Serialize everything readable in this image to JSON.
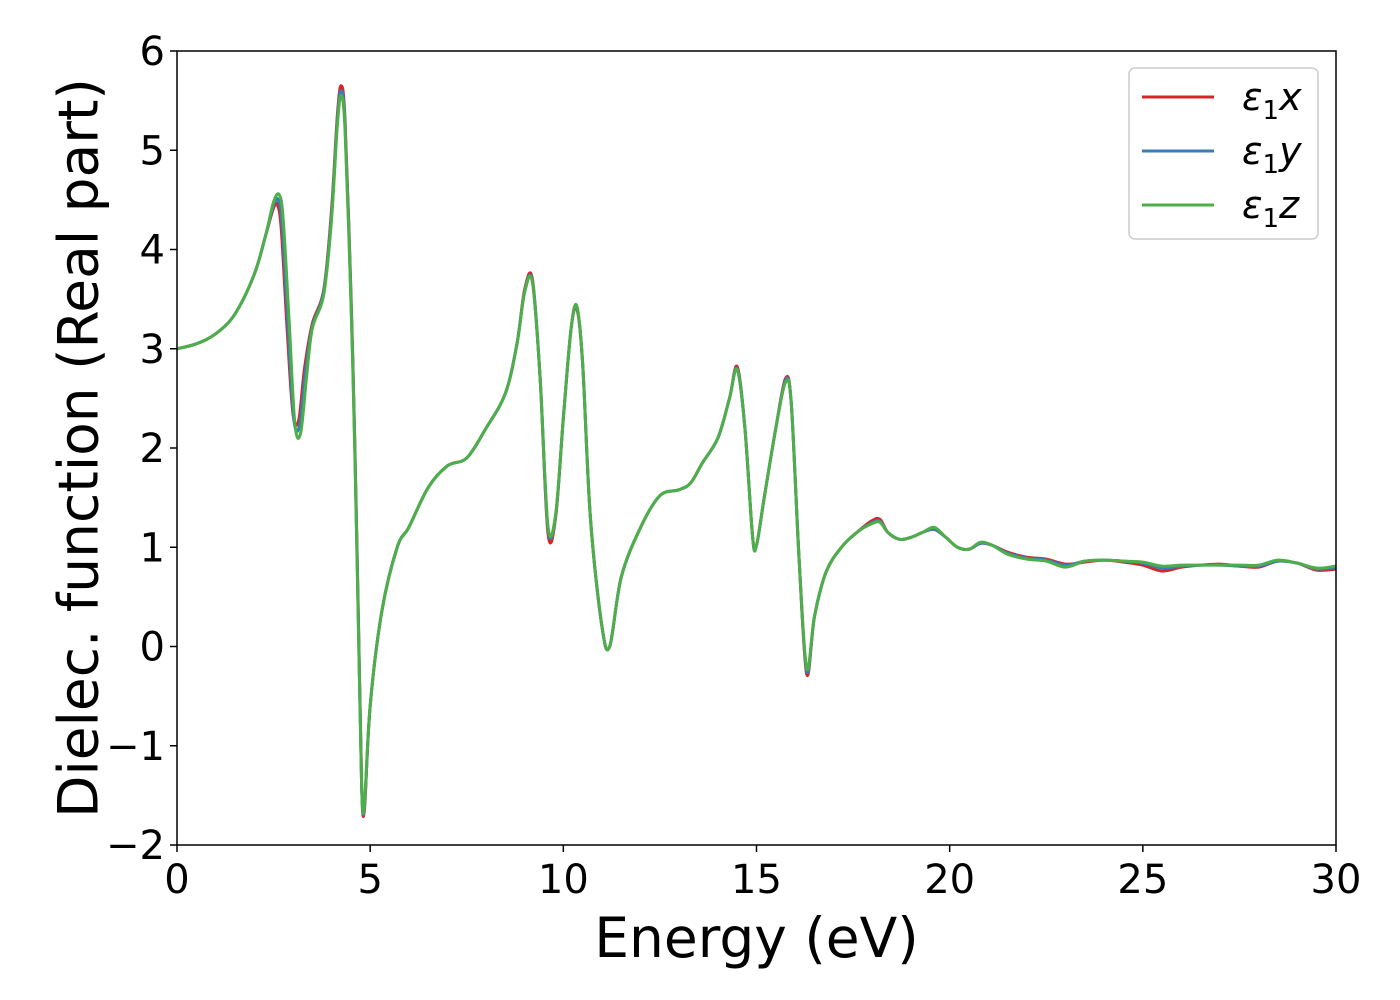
{
  "chart_data": {
    "type": "line",
    "xlabel": "Energy (eV)",
    "ylabel": "Dielec. function (Real part)",
    "xlim": [
      0,
      30
    ],
    "ylim": [
      -2,
      6
    ],
    "xticks": [
      0,
      5,
      10,
      15,
      20,
      25,
      30
    ],
    "yticks": [
      -2,
      -1,
      0,
      1,
      2,
      3,
      4,
      5,
      6
    ],
    "xtick_labels": [
      "0",
      "5",
      "10",
      "15",
      "20",
      "25",
      "30"
    ],
    "ytick_labels": [
      "−2",
      "−1",
      "0",
      "1",
      "2",
      "3",
      "4",
      "5",
      "6"
    ],
    "grid": false,
    "legend_position": "top-right",
    "series": [
      {
        "name": "ε₁x",
        "legend_main": "ε",
        "legend_sub": "1",
        "legend_tail": "x",
        "color": "#d62728",
        "x": [
          0,
          0.5,
          1.0,
          1.5,
          2.0,
          2.3,
          2.5,
          2.6,
          2.7,
          2.85,
          3.0,
          3.15,
          3.3,
          3.5,
          3.8,
          4.0,
          4.15,
          4.25,
          4.35,
          4.5,
          4.6,
          4.7,
          4.78,
          4.85,
          5.0,
          5.3,
          5.7,
          6.0,
          6.5,
          7.0,
          7.5,
          8.0,
          8.5,
          8.8,
          9.0,
          9.2,
          9.4,
          9.6,
          9.8,
          10.0,
          10.2,
          10.35,
          10.5,
          10.7,
          11.0,
          11.2,
          11.5,
          12.0,
          12.5,
          13.0,
          13.3,
          13.6,
          14.0,
          14.3,
          14.5,
          14.7,
          14.9,
          15.0,
          15.2,
          15.5,
          15.75,
          15.9,
          16.1,
          16.3,
          16.5,
          16.8,
          17.2,
          17.6,
          18.0,
          18.2,
          18.4,
          18.7,
          19.0,
          19.3,
          19.6,
          19.9,
          20.2,
          20.5,
          20.8,
          21.1,
          21.5,
          22.0,
          22.5,
          23.0,
          23.5,
          24.0,
          24.5,
          25.0,
          25.5,
          26.0,
          26.5,
          27.0,
          27.5,
          28.0,
          28.5,
          29.0,
          29.5,
          30.0
        ],
        "y": [
          3.0,
          3.05,
          3.15,
          3.35,
          3.75,
          4.15,
          4.42,
          4.45,
          4.2,
          3.2,
          2.35,
          2.28,
          2.8,
          3.25,
          3.6,
          4.4,
          5.35,
          5.65,
          5.3,
          3.6,
          2.1,
          0.2,
          -1.4,
          -1.65,
          -0.6,
          0.35,
          1.0,
          1.2,
          1.6,
          1.82,
          1.9,
          2.2,
          2.55,
          3.05,
          3.6,
          3.7,
          2.7,
          1.15,
          1.3,
          2.3,
          3.2,
          3.4,
          2.85,
          1.3,
          0.2,
          0.0,
          0.7,
          1.2,
          1.52,
          1.58,
          1.65,
          1.85,
          2.1,
          2.5,
          2.82,
          2.2,
          1.1,
          1.02,
          1.5,
          2.2,
          2.7,
          2.45,
          0.9,
          -0.28,
          0.3,
          0.75,
          1.0,
          1.15,
          1.27,
          1.28,
          1.15,
          1.08,
          1.1,
          1.15,
          1.18,
          1.1,
          1.0,
          0.98,
          1.04,
          1.02,
          0.95,
          0.9,
          0.88,
          0.83,
          0.85,
          0.87,
          0.85,
          0.82,
          0.76,
          0.8,
          0.82,
          0.83,
          0.81,
          0.8,
          0.86,
          0.84,
          0.77,
          0.78
        ]
      },
      {
        "name": "ε₁y",
        "legend_main": "ε",
        "legend_sub": "1",
        "legend_tail": "y",
        "color": "#377eb8",
        "x": [
          0,
          0.5,
          1.0,
          1.5,
          2.0,
          2.3,
          2.5,
          2.62,
          2.72,
          2.87,
          3.02,
          3.17,
          3.32,
          3.5,
          3.8,
          4.0,
          4.15,
          4.25,
          4.35,
          4.5,
          4.6,
          4.7,
          4.78,
          4.85,
          5.0,
          5.3,
          5.7,
          6.0,
          6.5,
          7.0,
          7.5,
          8.0,
          8.5,
          8.8,
          9.0,
          9.2,
          9.4,
          9.6,
          9.8,
          10.0,
          10.2,
          10.35,
          10.5,
          10.7,
          11.0,
          11.2,
          11.5,
          12.0,
          12.5,
          13.0,
          13.3,
          13.6,
          14.0,
          14.3,
          14.5,
          14.7,
          14.9,
          15.0,
          15.2,
          15.5,
          15.75,
          15.9,
          16.1,
          16.3,
          16.5,
          16.8,
          17.2,
          17.6,
          18.0,
          18.2,
          18.4,
          18.7,
          19.0,
          19.3,
          19.6,
          19.9,
          20.2,
          20.5,
          20.8,
          21.1,
          21.5,
          22.0,
          22.5,
          23.0,
          23.5,
          24.0,
          24.5,
          25.0,
          25.5,
          26.0,
          26.5,
          27.0,
          27.5,
          28.0,
          28.5,
          29.0,
          29.5,
          30.0
        ],
        "y": [
          3.0,
          3.05,
          3.15,
          3.35,
          3.75,
          4.15,
          4.45,
          4.5,
          4.25,
          3.25,
          2.3,
          2.22,
          2.75,
          3.22,
          3.58,
          4.35,
          5.3,
          5.6,
          5.25,
          3.55,
          2.05,
          0.15,
          -1.42,
          -1.62,
          -0.6,
          0.35,
          1.0,
          1.2,
          1.6,
          1.82,
          1.9,
          2.2,
          2.55,
          3.05,
          3.58,
          3.68,
          2.7,
          1.2,
          1.32,
          2.3,
          3.2,
          3.42,
          2.85,
          1.3,
          0.2,
          0.0,
          0.7,
          1.2,
          1.52,
          1.58,
          1.65,
          1.85,
          2.1,
          2.5,
          2.8,
          2.2,
          1.1,
          1.02,
          1.5,
          2.2,
          2.68,
          2.45,
          0.9,
          -0.25,
          0.3,
          0.75,
          1.0,
          1.15,
          1.25,
          1.26,
          1.15,
          1.08,
          1.1,
          1.15,
          1.18,
          1.1,
          1.0,
          0.98,
          1.04,
          1.02,
          0.94,
          0.89,
          0.87,
          0.82,
          0.86,
          0.87,
          0.86,
          0.84,
          0.79,
          0.81,
          0.82,
          0.82,
          0.81,
          0.81,
          0.86,
          0.84,
          0.78,
          0.8
        ]
      },
      {
        "name": "ε₁z",
        "legend_main": "ε",
        "legend_sub": "1",
        "legend_tail": "z",
        "color": "#4daf4a",
        "x": [
          0,
          0.5,
          1.0,
          1.5,
          2.0,
          2.3,
          2.5,
          2.65,
          2.75,
          2.9,
          3.05,
          3.2,
          3.35,
          3.5,
          3.8,
          4.0,
          4.15,
          4.25,
          4.35,
          4.5,
          4.6,
          4.7,
          4.78,
          4.85,
          5.0,
          5.3,
          5.7,
          6.0,
          6.5,
          7.0,
          7.5,
          8.0,
          8.5,
          8.8,
          9.0,
          9.2,
          9.4,
          9.6,
          9.8,
          10.0,
          10.2,
          10.35,
          10.5,
          10.7,
          11.0,
          11.2,
          11.5,
          12.0,
          12.5,
          13.0,
          13.3,
          13.6,
          14.0,
          14.3,
          14.5,
          14.7,
          14.9,
          15.0,
          15.2,
          15.5,
          15.75,
          15.9,
          16.1,
          16.3,
          16.5,
          16.8,
          17.2,
          17.6,
          18.0,
          18.2,
          18.4,
          18.7,
          19.0,
          19.3,
          19.6,
          19.9,
          20.2,
          20.5,
          20.8,
          21.1,
          21.5,
          22.0,
          22.5,
          23.0,
          23.5,
          24.0,
          24.5,
          25.0,
          25.5,
          26.0,
          26.5,
          27.0,
          27.5,
          28.0,
          28.5,
          29.0,
          29.5,
          30.0
        ],
        "y": [
          3.0,
          3.05,
          3.15,
          3.35,
          3.75,
          4.15,
          4.48,
          4.55,
          4.3,
          3.3,
          2.25,
          2.15,
          2.7,
          3.2,
          3.55,
          4.3,
          5.25,
          5.55,
          5.2,
          3.5,
          2.0,
          0.1,
          -1.43,
          -1.6,
          -0.6,
          0.35,
          1.0,
          1.2,
          1.6,
          1.82,
          1.9,
          2.2,
          2.55,
          3.05,
          3.57,
          3.67,
          2.7,
          1.22,
          1.33,
          2.3,
          3.2,
          3.43,
          2.85,
          1.3,
          0.2,
          0.0,
          0.7,
          1.2,
          1.52,
          1.58,
          1.65,
          1.85,
          2.1,
          2.5,
          2.79,
          2.2,
          1.1,
          1.02,
          1.5,
          2.2,
          2.66,
          2.45,
          0.9,
          -0.22,
          0.3,
          0.75,
          1.0,
          1.15,
          1.24,
          1.25,
          1.15,
          1.08,
          1.1,
          1.15,
          1.2,
          1.1,
          1.0,
          0.98,
          1.05,
          1.02,
          0.93,
          0.88,
          0.86,
          0.8,
          0.86,
          0.87,
          0.86,
          0.85,
          0.81,
          0.82,
          0.82,
          0.82,
          0.82,
          0.82,
          0.87,
          0.84,
          0.79,
          0.81
        ]
      }
    ]
  }
}
